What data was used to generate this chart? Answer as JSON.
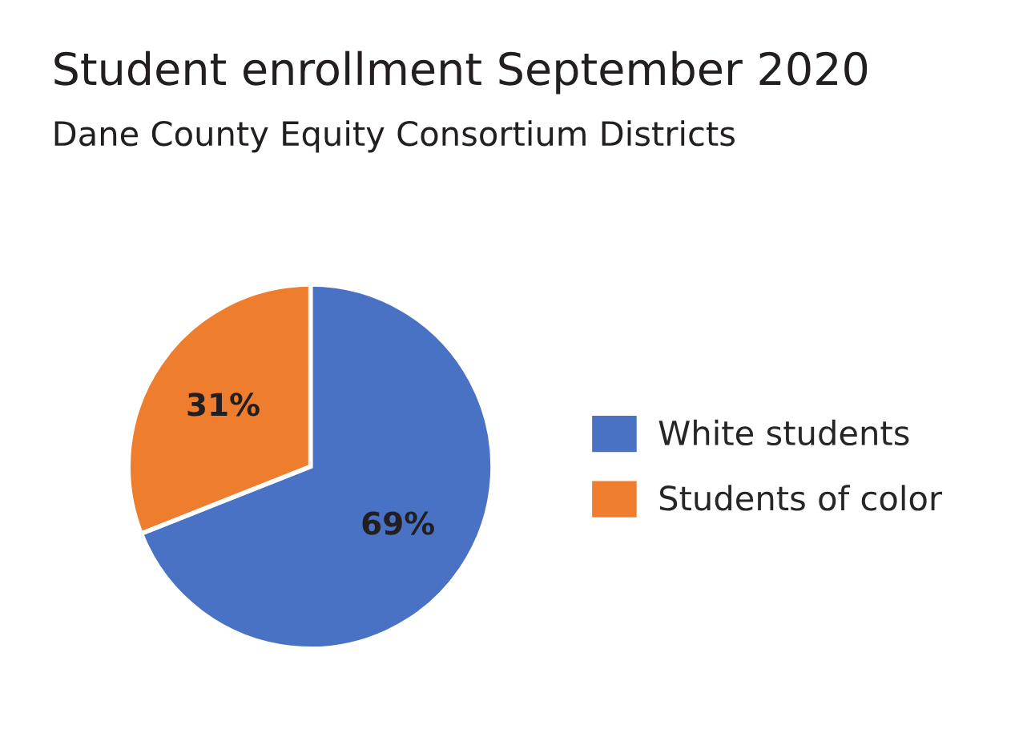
{
  "chart_data": {
    "type": "pie",
    "title": "Student enrollment September 2020",
    "subtitle": "Dane County Equity Consortium Districts",
    "categories": [
      "White students",
      "Students of color"
    ],
    "values": [
      69,
      31
    ],
    "colors": [
      "#4a72c4",
      "#ef7d2e"
    ],
    "value_labels": [
      "69%",
      "31%"
    ],
    "legend": "right"
  }
}
